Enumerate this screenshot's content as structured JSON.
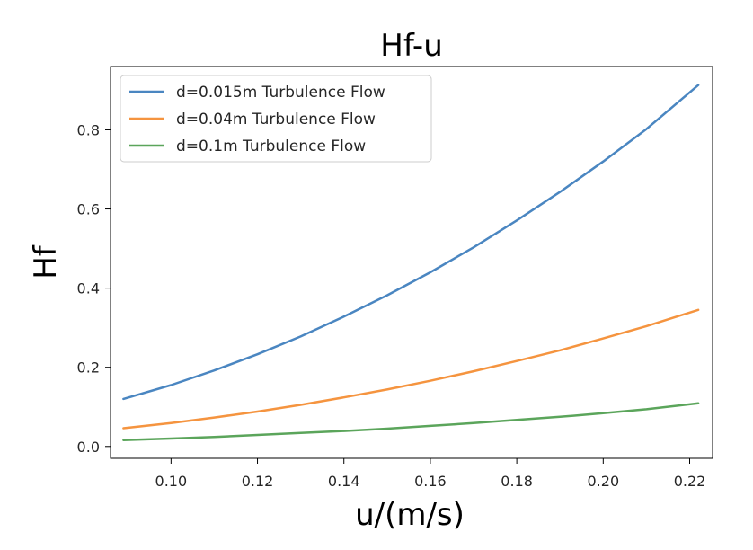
{
  "chart_data": {
    "type": "line",
    "title": "Hf-u",
    "xlabel": "u/(m/s)",
    "ylabel": "Hf",
    "xlim": [
      0.086,
      0.2253
    ],
    "ylim": [
      -0.03,
      0.96
    ],
    "xticks": [
      0.1,
      0.12,
      0.14,
      0.16,
      0.18,
      0.2,
      0.22
    ],
    "xtick_labels": [
      "0.10",
      "0.12",
      "0.14",
      "0.16",
      "0.18",
      "0.20",
      "0.22"
    ],
    "yticks": [
      0.0,
      0.2,
      0.4,
      0.6,
      0.8
    ],
    "ytick_labels": [
      "0.0",
      "0.2",
      "0.4",
      "0.6",
      "0.8"
    ],
    "grid": false,
    "legend_position": "top-left",
    "x": [
      0.089,
      0.1,
      0.11,
      0.12,
      0.13,
      0.14,
      0.15,
      0.16,
      0.17,
      0.18,
      0.19,
      0.2,
      0.21,
      0.222
    ],
    "series": [
      {
        "name": "d=0.015m Turbulence Flow",
        "color": "#4a86c1",
        "values": [
          0.12,
          0.155,
          0.192,
          0.233,
          0.278,
          0.328,
          0.382,
          0.44,
          0.503,
          0.571,
          0.643,
          0.72,
          0.802,
          0.913
        ]
      },
      {
        "name": "d=0.04m Turbulence Flow",
        "color": "#f5943f",
        "values": [
          0.046,
          0.059,
          0.073,
          0.088,
          0.105,
          0.124,
          0.144,
          0.166,
          0.19,
          0.216,
          0.243,
          0.273,
          0.304,
          0.345
        ]
      },
      {
        "name": "d=0.1m Turbulence Flow",
        "color": "#5ba55b",
        "values": [
          0.016,
          0.02,
          0.024,
          0.029,
          0.034,
          0.039,
          0.045,
          0.052,
          0.059,
          0.067,
          0.075,
          0.084,
          0.094,
          0.109
        ]
      }
    ]
  }
}
